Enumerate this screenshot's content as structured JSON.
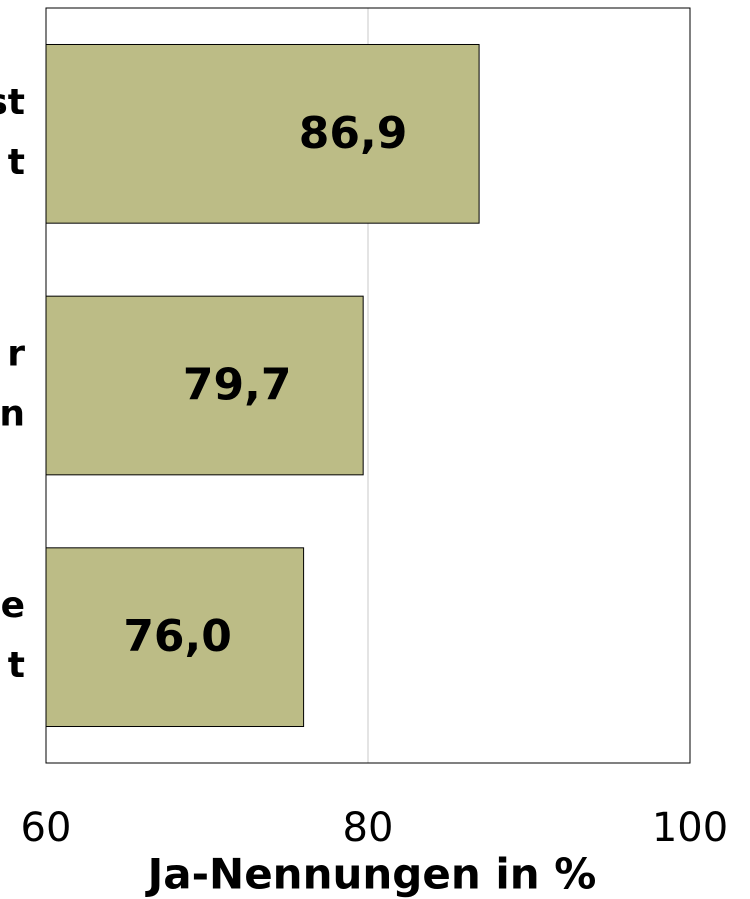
{
  "chart_data": {
    "type": "bar",
    "orientation": "horizontal",
    "categories": [
      [
        "st",
        "t"
      ],
      [
        "r",
        "n"
      ],
      [
        "e",
        "t"
      ]
    ],
    "values": [
      86.9,
      79.7,
      76.0
    ],
    "value_labels": [
      "86,9",
      "79,7",
      "76,0"
    ],
    "color": "#bcbc86",
    "xlim": [
      60,
      100
    ],
    "xticks": [
      60,
      80,
      100
    ],
    "x_label": "Ja-Nennungen in %",
    "grid": true
  }
}
